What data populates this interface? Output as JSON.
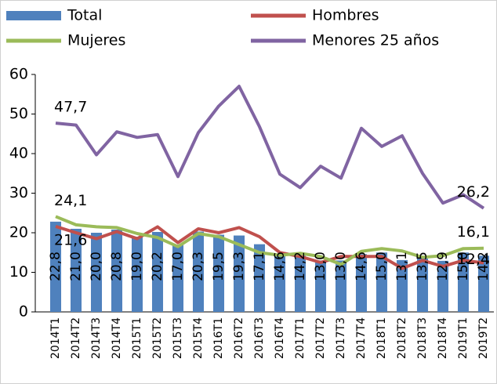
{
  "chart_data": {
    "type": "bar",
    "categories": [
      "2014T1",
      "2014T2",
      "2014T3",
      "2014T4",
      "2015T1",
      "2015T2",
      "2015T3",
      "2015T4",
      "2016T1",
      "2016T2",
      "2016T3",
      "2016T4",
      "2017T1",
      "2017T2",
      "2017T3",
      "2017T4",
      "2018T1",
      "2018T2",
      "2018T3",
      "2018T4",
      "2019T1",
      "2019T2"
    ],
    "series": [
      {
        "name": "Total",
        "type": "bar",
        "color": "#4f81bd",
        "values": [
          22.8,
          21.0,
          20.0,
          20.8,
          19.0,
          20.2,
          17.0,
          20.3,
          19.5,
          19.3,
          17.1,
          14.6,
          14.2,
          13.0,
          13.0,
          14.6,
          15.0,
          13.1,
          13.5,
          12.9,
          15.0,
          14.2
        ],
        "value_labels": [
          "22,8",
          "21,0",
          "20,0",
          "20,8",
          "19,0",
          "20,2",
          "17,0",
          "20,3",
          "19,5",
          "19,3",
          "17,1",
          "14,6",
          "14,2",
          "13,0",
          "13,0",
          "14,6",
          "15,0",
          "13,1",
          "13,5",
          "12,9",
          "15,0",
          "14,2"
        ]
      },
      {
        "name": "Hombres",
        "type": "line",
        "color": "#c0504d",
        "values": [
          21.6,
          20,
          18.5,
          20.3,
          18.5,
          21.5,
          17.5,
          21,
          20,
          21.3,
          19,
          15,
          14,
          12.5,
          14,
          14,
          14,
          11,
          13,
          11.5,
          13,
          12.4
        ],
        "value_labels": [
          "21,6",
          null,
          null,
          null,
          null,
          null,
          null,
          null,
          null,
          null,
          null,
          null,
          null,
          null,
          null,
          null,
          null,
          null,
          null,
          null,
          null,
          "12,4"
        ]
      },
      {
        "name": "Mujeres",
        "type": "line",
        "color": "#9bbb59",
        "values": [
          24.1,
          22,
          21.5,
          21.3,
          19.8,
          18.8,
          16.5,
          19.8,
          19,
          17,
          15,
          14.3,
          14.8,
          14,
          12,
          15.3,
          16,
          15.4,
          13.8,
          14.2,
          16,
          16.1
        ],
        "value_labels": [
          "24,1",
          null,
          null,
          null,
          null,
          null,
          null,
          null,
          null,
          null,
          null,
          null,
          null,
          null,
          null,
          null,
          null,
          null,
          null,
          null,
          null,
          "16,1"
        ]
      },
      {
        "name": "Menores 25 años",
        "type": "line",
        "color": "#8064a2",
        "values": [
          47.7,
          47.2,
          39.7,
          45.5,
          44.1,
          44.8,
          34.2,
          45.3,
          52,
          57,
          46.8,
          34.8,
          31.4,
          36.8,
          33.8,
          46.4,
          41.8,
          44.5,
          35,
          27.5,
          29.6,
          26.2
        ],
        "value_labels": [
          "47,7",
          null,
          null,
          null,
          null,
          null,
          null,
          null,
          null,
          null,
          null,
          null,
          null,
          null,
          null,
          null,
          null,
          null,
          null,
          null,
          null,
          "26,2"
        ]
      }
    ],
    "ylim": [
      0,
      60
    ],
    "yticks": [
      0,
      10,
      20,
      30,
      40,
      50,
      60
    ]
  }
}
